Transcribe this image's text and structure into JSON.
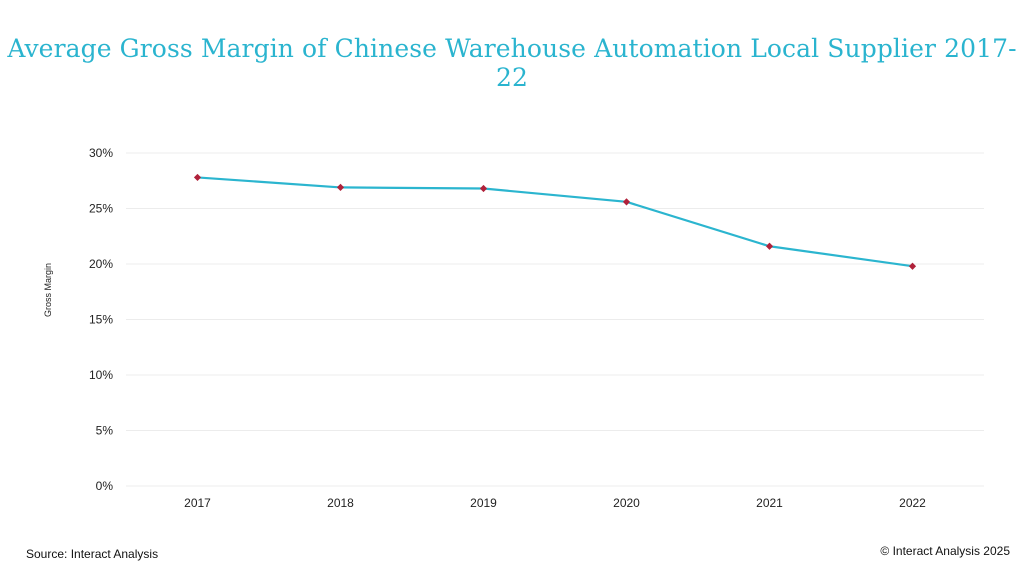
{
  "chart_data": {
    "type": "line",
    "title": "Average Gross Margin of Chinese Warehouse Automation Local Supplier 2017-22",
    "xlabel": "",
    "ylabel": "Gross Margin",
    "categories": [
      "2017",
      "2018",
      "2019",
      "2020",
      "2021",
      "2022"
    ],
    "series": [
      {
        "values": [
          27.8,
          26.9,
          26.8,
          25.6,
          21.6,
          19.8
        ],
        "color": "#2bb5cf",
        "marker_color": "#b0213a"
      }
    ],
    "ylim": [
      0,
      30
    ],
    "yticks": [
      0,
      5,
      10,
      15,
      20,
      25,
      30
    ],
    "ytick_labels": [
      "0%",
      "5%",
      "10%",
      "15%",
      "20%",
      "25%",
      "30%"
    ],
    "grid": "horizontal",
    "legend": "none"
  },
  "footer": {
    "source": "Source: Interact Analysis",
    "copyright": "© Interact Analysis 2025"
  }
}
